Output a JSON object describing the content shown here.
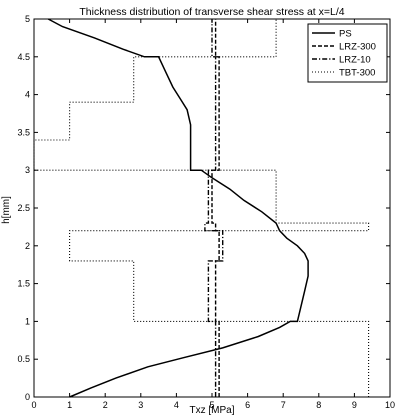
{
  "chart_data": {
    "type": "line",
    "title": "Thickness distribution of transverse shear stress at x=L/4",
    "xlabel": "Txz [MPa]",
    "ylabel": "h[mm]",
    "xlim": [
      0,
      10
    ],
    "ylim": [
      0,
      5
    ],
    "xticks": [
      "0",
      "1",
      "2",
      "3",
      "4",
      "5",
      "6",
      "7",
      "8",
      "9",
      "10"
    ],
    "yticks": [
      "0",
      "0.5",
      "1",
      "1.5",
      "2",
      "2.5",
      "3",
      "3.5",
      "4",
      "4.5",
      "5"
    ],
    "grid": false,
    "legend_position": "top-right",
    "series": [
      {
        "name": "PS",
        "style": "solid",
        "points": [
          [
            1.0,
            0.0
          ],
          [
            1.6,
            0.12
          ],
          [
            2.3,
            0.25
          ],
          [
            3.2,
            0.4
          ],
          [
            4.2,
            0.52
          ],
          [
            5.3,
            0.65
          ],
          [
            6.3,
            0.8
          ],
          [
            6.9,
            0.92
          ],
          [
            7.2,
            1.0
          ],
          [
            7.4,
            1.0
          ],
          [
            7.5,
            1.2
          ],
          [
            7.6,
            1.4
          ],
          [
            7.7,
            1.6
          ],
          [
            7.7,
            1.8
          ],
          [
            7.6,
            1.9
          ],
          [
            7.4,
            2.0
          ],
          [
            7.1,
            2.1
          ],
          [
            6.9,
            2.2
          ],
          [
            6.8,
            2.3
          ],
          [
            6.4,
            2.45
          ],
          [
            5.9,
            2.6
          ],
          [
            5.5,
            2.75
          ],
          [
            5.0,
            2.9
          ],
          [
            4.7,
            3.0
          ],
          [
            4.4,
            3.0
          ],
          [
            4.4,
            3.3
          ],
          [
            4.4,
            3.6
          ],
          [
            4.3,
            3.8
          ],
          [
            4.1,
            3.95
          ],
          [
            3.9,
            4.1
          ],
          [
            3.7,
            4.3
          ],
          [
            3.5,
            4.5
          ],
          [
            3.1,
            4.5
          ],
          [
            2.5,
            4.6
          ],
          [
            1.7,
            4.75
          ],
          [
            0.8,
            4.9
          ],
          [
            0.4,
            5.0
          ]
        ]
      },
      {
        "name": "LRZ-300",
        "style": "dashed",
        "points": [
          [
            5.2,
            0.0
          ],
          [
            5.2,
            1.0
          ],
          [
            5.1,
            1.0
          ],
          [
            5.1,
            1.8
          ],
          [
            5.2,
            1.8
          ],
          [
            5.2,
            2.2
          ],
          [
            5.1,
            2.2
          ],
          [
            5.1,
            2.3
          ],
          [
            5.0,
            2.3
          ],
          [
            5.0,
            3.0
          ],
          [
            5.2,
            3.0
          ],
          [
            5.2,
            4.5
          ],
          [
            5.1,
            4.5
          ],
          [
            5.1,
            5.0
          ]
        ]
      },
      {
        "name": "LRZ-10",
        "style": "dashdot",
        "points": [
          [
            5.1,
            0.0
          ],
          [
            5.1,
            1.0
          ],
          [
            4.9,
            1.0
          ],
          [
            4.9,
            1.8
          ],
          [
            5.3,
            1.8
          ],
          [
            5.3,
            2.2
          ],
          [
            4.8,
            2.2
          ],
          [
            4.8,
            2.3
          ],
          [
            4.9,
            2.3
          ],
          [
            4.9,
            3.0
          ],
          [
            5.1,
            3.0
          ],
          [
            5.1,
            4.5
          ],
          [
            5.0,
            4.5
          ],
          [
            5.0,
            5.0
          ]
        ]
      },
      {
        "name": "TBT-300",
        "style": "dotted",
        "points": [
          [
            9.4,
            0.0
          ],
          [
            9.4,
            1.0
          ],
          [
            2.8,
            1.0
          ],
          [
            2.8,
            1.8
          ],
          [
            1.0,
            1.8
          ],
          [
            1.0,
            2.2
          ],
          [
            9.4,
            2.2
          ],
          [
            9.4,
            2.3
          ],
          [
            6.8,
            2.3
          ],
          [
            6.8,
            3.0
          ],
          [
            0.0,
            3.0
          ],
          [
            0.0,
            3.4
          ],
          [
            1.0,
            3.4
          ],
          [
            1.0,
            3.9
          ],
          [
            2.8,
            3.9
          ],
          [
            2.8,
            4.5
          ],
          [
            6.8,
            4.5
          ],
          [
            6.8,
            5.0
          ]
        ]
      }
    ]
  }
}
